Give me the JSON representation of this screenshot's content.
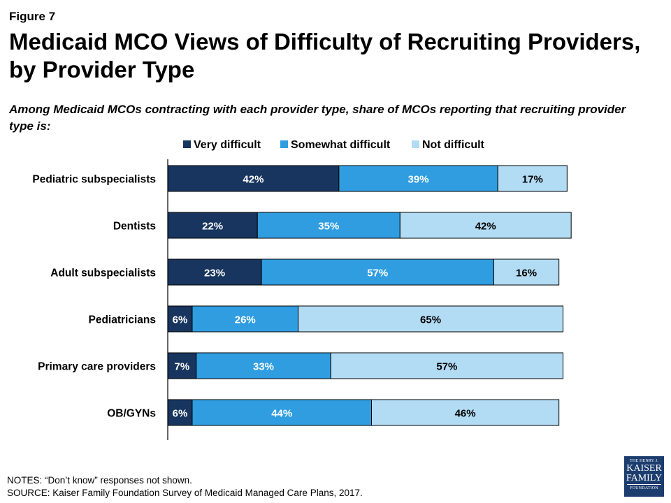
{
  "figure_label": "Figure 7",
  "title": "Medicaid MCO Views of Difficulty of Recruiting Providers, by Provider Type",
  "subtitle": "Among Medicaid MCOs contracting with each provider type, share of MCOs reporting that recruiting provider type is:",
  "notes": [
    "NOTES: “Don’t know” responses not shown.",
    "SOURCE: Kaiser Family Foundation Survey of Medicaid Managed Care Plans, 2017."
  ],
  "logo": {
    "line1": "THE HENRY J.",
    "line2": "KAISER",
    "line3": "FAMILY",
    "line4": "FOUNDATION"
  },
  "colors": {
    "very": "#17355e",
    "somewhat": "#2f9de0",
    "not": "#b2dbf4",
    "axis": "#000000"
  },
  "chart_data": {
    "type": "bar",
    "orientation": "horizontal",
    "stacked": true,
    "categories": [
      "Pediatric subspecialists",
      "Dentists",
      "Adult subspecialists",
      "Pediatricians",
      "Primary care providers",
      "OB/GYNs"
    ],
    "series": [
      {
        "name": "Very difficult",
        "values": [
          42,
          22,
          23,
          6,
          7,
          6
        ],
        "labels": [
          "42%",
          "22%",
          "23%",
          "6%",
          "7%",
          "6%"
        ]
      },
      {
        "name": "Somewhat difficult",
        "values": [
          39,
          35,
          57,
          26,
          33,
          44
        ],
        "labels": [
          "39%",
          "35%",
          "57%",
          "26%",
          "33%",
          "44%"
        ]
      },
      {
        "name": "Not difficult",
        "values": [
          17,
          42,
          16,
          65,
          57,
          46
        ],
        "labels": [
          "17%",
          "42%",
          "16%",
          "65%",
          "57%",
          "46%"
        ]
      }
    ],
    "legend_position": "top",
    "grid": false,
    "xlim": [
      0,
      100
    ]
  }
}
